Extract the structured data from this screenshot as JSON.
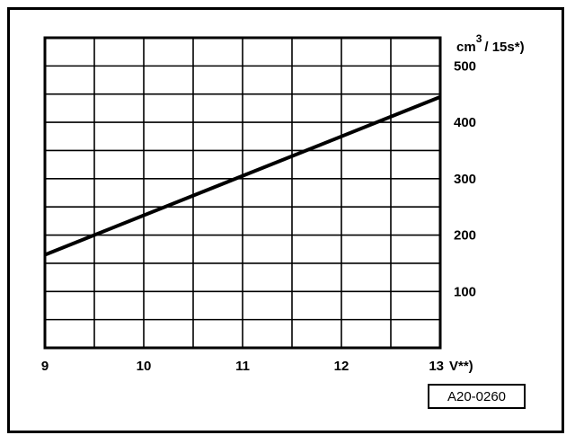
{
  "chart_data": {
    "type": "line",
    "x": [
      9,
      13
    ],
    "series": [
      {
        "values": [
          165,
          445
        ]
      }
    ],
    "xlim": [
      9,
      13
    ],
    "ylim": [
      0,
      550
    ],
    "x_ticks": [
      "9",
      "10",
      "11",
      "12",
      "13"
    ],
    "y_ticks": [
      "100",
      "200",
      "300",
      "400",
      "500"
    ],
    "x_unit": "V**)",
    "y_unit_main": "cm",
    "y_unit_sup": "3",
    "y_unit_rest": "/ 15s*)",
    "grid": true,
    "line_color": "#000000"
  },
  "figure_code": "A20-0260"
}
